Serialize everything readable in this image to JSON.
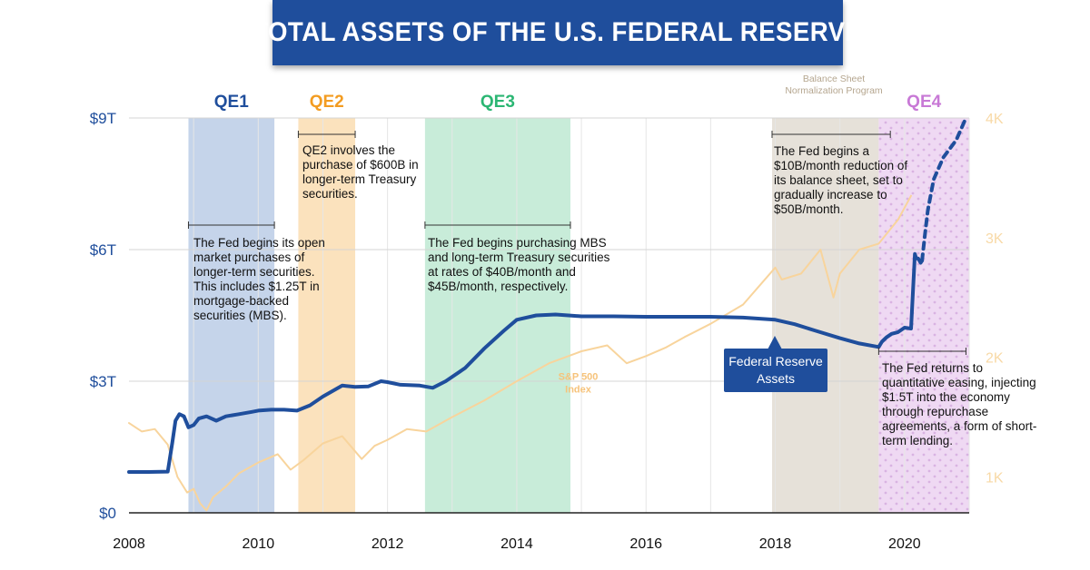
{
  "title": "TOTAL ASSETS OF THE U.S. FEDERAL RESERVE",
  "chart_data": {
    "type": "line",
    "x_range": [
      2008,
      2021
    ],
    "x_ticks": [
      {
        "value": 2008,
        "label": "2008"
      },
      {
        "value": 2010,
        "label": "2010"
      },
      {
        "value": 2012,
        "label": "2012"
      },
      {
        "value": 2014,
        "label": "2014"
      },
      {
        "value": 2016,
        "label": "2016"
      },
      {
        "value": 2018,
        "label": "2018"
      },
      {
        "value": 2020,
        "label": "2020"
      }
    ],
    "y_left": {
      "range": [
        0,
        9
      ],
      "ticks": [
        {
          "value": 0,
          "label": "$0"
        },
        {
          "value": 3,
          "label": "$3T"
        },
        {
          "value": 6,
          "label": "$6T"
        },
        {
          "value": 9,
          "label": "$9T"
        }
      ]
    },
    "y_right": {
      "range": [
        700,
        4000
      ],
      "ticks": [
        {
          "value": 1000,
          "label": "1K"
        },
        {
          "value": 2000,
          "label": "2K"
        },
        {
          "value": 3000,
          "label": "3K"
        },
        {
          "value": 4000,
          "label": "4K"
        }
      ]
    },
    "grid": true,
    "periods": [
      {
        "label": "QE1",
        "start": 2008.92,
        "end": 2010.25,
        "color": "#c5d4ea",
        "label_color": "#1f4e9c",
        "pattern": false
      },
      {
        "label": "QE2",
        "start": 2010.62,
        "end": 2011.5,
        "color": "#fbe2bd",
        "label_color": "#f39c21",
        "pattern": false
      },
      {
        "label": "QE3",
        "start": 2012.58,
        "end": 2014.83,
        "color": "#c8ecd9",
        "label_color": "#2bb673",
        "pattern": false
      },
      {
        "label": "",
        "start": 2017.95,
        "end": 2019.6,
        "color": "#e6e1d9",
        "label_color": "#b5a68f",
        "pattern": false
      },
      {
        "label": "QE4",
        "start": 2019.6,
        "end": 2021.0,
        "color": "#efd9f3",
        "label_color": "#c879d6",
        "pattern": true
      }
    ],
    "periods_note": "Balance Sheet Normalization Program",
    "series": [
      {
        "name": "Federal Reserve Assets",
        "axis": "left",
        "color": "#1f4e9c",
        "x": [
          2008.0,
          2008.3,
          2008.6,
          2008.67,
          2008.72,
          2008.78,
          2008.85,
          2008.92,
          2009.0,
          2009.08,
          2009.2,
          2009.35,
          2009.5,
          2009.7,
          2009.9,
          2010.0,
          2010.2,
          2010.4,
          2010.6,
          2010.8,
          2011.0,
          2011.3,
          2011.5,
          2011.7,
          2011.9,
          2012.0,
          2012.2,
          2012.5,
          2012.7,
          2012.9,
          2013.2,
          2013.5,
          2013.8,
          2014.0,
          2014.3,
          2014.6,
          2014.8,
          2015.0,
          2015.5,
          2016.0,
          2016.5,
          2017.0,
          2017.5,
          2018.0,
          2018.3,
          2018.6,
          2019.0,
          2019.3,
          2019.6,
          2019.65,
          2019.72,
          2019.8,
          2019.9,
          2020.0,
          2020.1,
          2020.16,
          2020.18,
          2020.21,
          2020.25,
          2020.27
        ],
        "values": [
          0.93,
          0.93,
          0.94,
          1.6,
          2.1,
          2.25,
          2.2,
          1.95,
          2.0,
          2.15,
          2.2,
          2.1,
          2.2,
          2.25,
          2.3,
          2.33,
          2.35,
          2.35,
          2.33,
          2.45,
          2.65,
          2.9,
          2.87,
          2.88,
          3.0,
          2.98,
          2.92,
          2.9,
          2.85,
          3.0,
          3.3,
          3.75,
          4.15,
          4.4,
          4.5,
          4.52,
          4.5,
          4.48,
          4.48,
          4.47,
          4.47,
          4.47,
          4.45,
          4.4,
          4.3,
          4.16,
          3.98,
          3.86,
          3.78,
          3.9,
          4.0,
          4.08,
          4.12,
          4.22,
          4.2,
          5.9,
          5.8,
          5.8,
          5.7,
          5.75
        ]
      },
      {
        "name": "Federal Reserve Assets (projected)",
        "axis": "left",
        "color": "#1f4e9c",
        "dashed": true,
        "x": [
          2020.27,
          2020.32,
          2020.36,
          2020.45,
          2020.6,
          2020.8,
          2020.95
        ],
        "values": [
          5.75,
          6.4,
          6.9,
          7.6,
          8.1,
          8.5,
          9.0
        ]
      },
      {
        "name": "S&P 500 Index",
        "axis": "right",
        "color": "#f8d49c",
        "x": [
          2008.0,
          2008.2,
          2008.4,
          2008.6,
          2008.75,
          2008.9,
          2009.0,
          2009.1,
          2009.2,
          2009.3,
          2009.5,
          2009.7,
          2010.0,
          2010.3,
          2010.5,
          2010.7,
          2011.0,
          2011.3,
          2011.6,
          2011.8,
          2012.0,
          2012.3,
          2012.6,
          2013.0,
          2013.5,
          2014.0,
          2014.5,
          2015.0,
          2015.4,
          2015.7,
          2016.0,
          2016.3,
          2016.6,
          2017.0,
          2017.5,
          2018.0,
          2018.1,
          2018.4,
          2018.7,
          2018.9,
          2019.0,
          2019.3,
          2019.6,
          2019.9,
          2020.1
        ],
        "values": [
          1450,
          1380,
          1400,
          1270,
          1000,
          870,
          900,
          780,
          720,
          830,
          920,
          1030,
          1120,
          1190,
          1060,
          1140,
          1280,
          1340,
          1150,
          1260,
          1310,
          1400,
          1380,
          1500,
          1640,
          1800,
          1950,
          2050,
          2100,
          1950,
          2010,
          2080,
          2170,
          2280,
          2440,
          2750,
          2650,
          2700,
          2900,
          2500,
          2700,
          2900,
          2950,
          3150,
          3350
        ]
      }
    ],
    "annotations": [
      {
        "id": "qe1",
        "text": "The Fed begins its open market purchases of longer-term securities. This includes $1.25T in mortgage-backed securities (MBS).",
        "start": 2008.92,
        "end": 2010.25
      },
      {
        "id": "qe2",
        "text": "QE2 involves the purchase of $600B in longer-term Treasury securities.",
        "start": 2010.62,
        "end": 2011.5
      },
      {
        "id": "qe3",
        "text": "The Fed begins purchasing MBS and long-term Treasury securities at rates of $40B/month and $45B/month, respectively.",
        "start": 2012.58,
        "end": 2014.83
      },
      {
        "id": "bsnp",
        "text": "The Fed begins a $10B/month reduction of its balance sheet, set to gradually increase to $50B/month.",
        "start": 2017.95,
        "end": 2019.78
      },
      {
        "id": "qe4",
        "text": "The Fed returns to quantitative easing, injecting $1.5T into the economy through repurchase agreements, a form of short-term lending.",
        "start": 2019.6,
        "end": 2020.95
      }
    ],
    "series_labels": {
      "fed": "Federal Reserve Assets",
      "sp500": "S&P 500 Index"
    }
  }
}
